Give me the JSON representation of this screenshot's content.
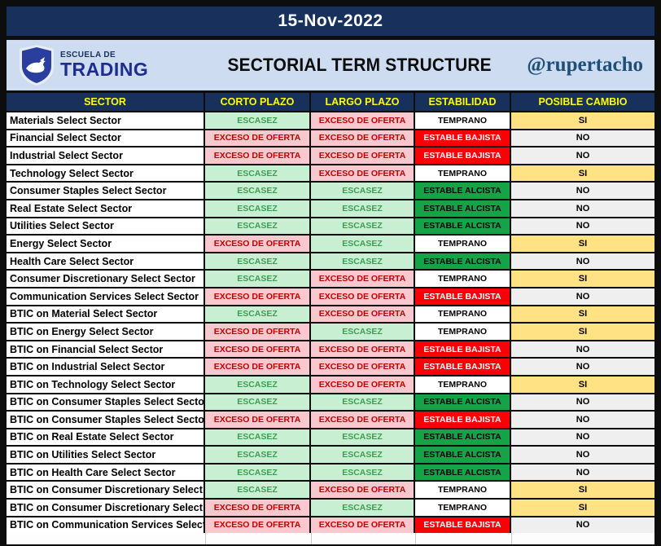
{
  "date_banner": {
    "text": "15-Nov-2022"
  },
  "brand": {
    "logo_top": "ESCUELA DE",
    "logo_bottom": "TRADING",
    "title": "SECTORIAL TERM STRUCTURE",
    "handle": "@rupertacho"
  },
  "table": {
    "columns": [
      "SECTOR",
      "CORTO PLAZO",
      "LARGO PLAZO",
      "ESTABILIDAD",
      "POSIBLE CAMBIO"
    ],
    "rows": [
      {
        "sector": "Materials Select Sector",
        "corto": "ESCASEZ",
        "largo": "EXCESO DE OFERTA",
        "estabilidad": "TEMPRANO",
        "cambio": "SI"
      },
      {
        "sector": "Financial Select Sector",
        "corto": "EXCESO DE OFERTA",
        "largo": "EXCESO DE OFERTA",
        "estabilidad": "ESTABLE BAJISTA",
        "cambio": "NO"
      },
      {
        "sector": "Industrial Select Sector",
        "corto": "EXCESO DE OFERTA",
        "largo": "EXCESO DE OFERTA",
        "estabilidad": "ESTABLE BAJISTA",
        "cambio": "NO"
      },
      {
        "sector": "Technology Select Sector",
        "corto": "ESCASEZ",
        "largo": "EXCESO DE OFERTA",
        "estabilidad": "TEMPRANO",
        "cambio": "SI"
      },
      {
        "sector": "Consumer Staples Select Sector",
        "corto": "ESCASEZ",
        "largo": "ESCASEZ",
        "estabilidad": "ESTABLE ALCISTA",
        "cambio": "NO"
      },
      {
        "sector": "Real Estate Select Sector",
        "corto": "ESCASEZ",
        "largo": "ESCASEZ",
        "estabilidad": "ESTABLE ALCISTA",
        "cambio": "NO"
      },
      {
        "sector": "Utilities Select Sector",
        "corto": "ESCASEZ",
        "largo": "ESCASEZ",
        "estabilidad": "ESTABLE ALCISTA",
        "cambio": "NO"
      },
      {
        "sector": "Energy Select Sector",
        "corto": "EXCESO DE OFERTA",
        "largo": "ESCASEZ",
        "estabilidad": "TEMPRANO",
        "cambio": "SI"
      },
      {
        "sector": "Health Care Select Sector",
        "corto": "ESCASEZ",
        "largo": "ESCASEZ",
        "estabilidad": "ESTABLE ALCISTA",
        "cambio": "NO"
      },
      {
        "sector": "Consumer Discretionary Select Sector",
        "corto": "ESCASEZ",
        "largo": "EXCESO DE OFERTA",
        "estabilidad": "TEMPRANO",
        "cambio": "SI"
      },
      {
        "sector": "Communication Services Select Sector",
        "corto": "EXCESO DE OFERTA",
        "largo": "EXCESO DE OFERTA",
        "estabilidad": "ESTABLE BAJISTA",
        "cambio": "NO"
      },
      {
        "sector": "BTIC on Material Select Sector",
        "corto": "ESCASEZ",
        "largo": "EXCESO DE OFERTA",
        "estabilidad": "TEMPRANO",
        "cambio": "SI"
      },
      {
        "sector": "BTIC on Energy Select Sector",
        "corto": "EXCESO DE OFERTA",
        "largo": "ESCASEZ",
        "estabilidad": "TEMPRANO",
        "cambio": "SI"
      },
      {
        "sector": "BTIC on Financial Select Sector",
        "corto": "EXCESO DE OFERTA",
        "largo": "EXCESO DE OFERTA",
        "estabilidad": "ESTABLE BAJISTA",
        "cambio": "NO"
      },
      {
        "sector": "BTIC on Industrial Select Sector",
        "corto": "EXCESO DE OFERTA",
        "largo": "EXCESO DE OFERTA",
        "estabilidad": "ESTABLE BAJISTA",
        "cambio": "NO"
      },
      {
        "sector": "BTIC on Technology Select Sector",
        "corto": "ESCASEZ",
        "largo": "EXCESO DE OFERTA",
        "estabilidad": "TEMPRANO",
        "cambio": "SI"
      },
      {
        "sector": "BTIC on Consumer Staples Select Sector",
        "corto": "ESCASEZ",
        "largo": "ESCASEZ",
        "estabilidad": "ESTABLE ALCISTA",
        "cambio": "NO"
      },
      {
        "sector": "BTIC on Consumer Staples Select Sector",
        "corto": "EXCESO DE OFERTA",
        "largo": "EXCESO DE OFERTA",
        "estabilidad": "ESTABLE BAJISTA",
        "cambio": "NO"
      },
      {
        "sector": "BTIC on Real Estate Select Sector",
        "corto": "ESCASEZ",
        "largo": "ESCASEZ",
        "estabilidad": "ESTABLE ALCISTA",
        "cambio": "NO"
      },
      {
        "sector": "BTIC on Utilities Select Sector",
        "corto": "ESCASEZ",
        "largo": "ESCASEZ",
        "estabilidad": "ESTABLE ALCISTA",
        "cambio": "NO"
      },
      {
        "sector": "BTIC on Health Care Select Sector",
        "corto": "ESCASEZ",
        "largo": "ESCASEZ",
        "estabilidad": "ESTABLE ALCISTA",
        "cambio": "NO"
      },
      {
        "sector": "BTIC on Consumer Discretionary Select Sector",
        "corto": "ESCASEZ",
        "largo": "EXCESO DE OFERTA",
        "estabilidad": "TEMPRANO",
        "cambio": "SI"
      },
      {
        "sector": "BTIC on Consumer Discretionary Select Sector",
        "corto": "EXCESO DE OFERTA",
        "largo": "ESCASEZ",
        "estabilidad": "TEMPRANO",
        "cambio": "SI"
      },
      {
        "sector": "BTIC on Communication Services Select Sector",
        "corto": "EXCESO DE OFERTA",
        "largo": "EXCESO DE OFERTA",
        "estabilidad": "ESTABLE BAJISTA",
        "cambio": "NO"
      }
    ]
  },
  "colors": {
    "band_navy": "#17305c",
    "band_light_blue": "#cddcf0",
    "header_text_yellow": "#ffff00",
    "escasez_bg": "#c9efd3",
    "escasez_text": "#3d9e53",
    "exceso_bg": "#f9c8ce",
    "exceso_text": "#c00000",
    "alcista_bg": "#14a347",
    "bajista_bg": "#fb0007",
    "si_bg": "#ffe283",
    "no_bg": "#efefef"
  }
}
